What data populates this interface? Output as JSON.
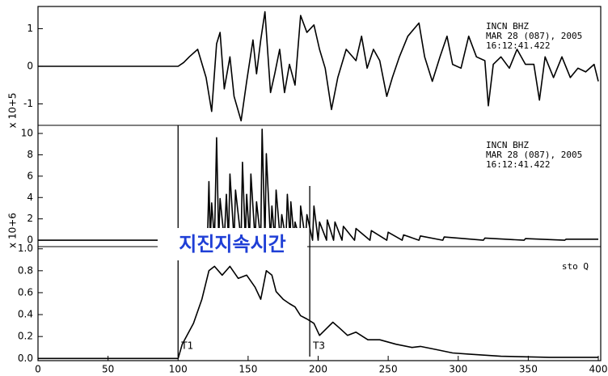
{
  "chart_data": [
    {
      "type": "line",
      "axis_label": "x 10+5",
      "color": "#000000",
      "annotations": [
        "INCN  BHZ",
        "MAR 28 (087), 2005",
        "16:12:41.422"
      ],
      "xlim": [
        0,
        400
      ],
      "ylim": [
        -1.57,
        1.59
      ],
      "yticks": [
        -1,
        0,
        1
      ],
      "x": [
        0,
        100,
        104,
        108,
        114,
        120,
        124,
        127.5,
        130,
        133,
        137,
        140,
        145,
        149,
        153.5,
        156,
        159,
        162,
        166,
        169,
        172.5,
        176,
        179.5,
        183.5,
        187.5,
        192,
        197,
        201,
        205,
        209.5,
        214,
        220,
        227,
        231,
        235,
        239.5,
        244,
        249,
        253,
        258,
        264,
        272,
        276,
        281.5,
        287,
        292,
        296,
        302,
        307.5,
        313,
        319,
        321.5,
        325,
        330.5,
        336.5,
        342,
        348,
        354,
        358,
        362,
        368,
        374,
        380,
        385.5,
        391,
        397,
        400
      ],
      "values": [
        0,
        0,
        0.1,
        0.25,
        0.45,
        -0.3,
        -1.2,
        0.6,
        0.9,
        -0.6,
        0.25,
        -0.8,
        -1.45,
        -0.4,
        0.7,
        -0.2,
        0.7,
        1.45,
        -0.7,
        -0.2,
        0.45,
        -0.7,
        0.05,
        -0.5,
        1.35,
        0.9,
        1.1,
        0.45,
        -0.05,
        -1.15,
        -0.3,
        0.45,
        0.15,
        0.8,
        -0.05,
        0.45,
        0.15,
        -0.8,
        -0.3,
        0.25,
        0.8,
        1.15,
        0.25,
        -0.4,
        0.25,
        0.8,
        0.05,
        -0.05,
        0.8,
        0.25,
        0.15,
        -1.05,
        0.05,
        0.25,
        -0.05,
        0.45,
        0.05,
        0.05,
        -0.9,
        0.25,
        -0.3,
        0.25,
        -0.3,
        -0.05,
        -0.15,
        0.05,
        -0.4
      ]
    },
    {
      "type": "line",
      "axis_label": "x 10+6",
      "color": "#000000",
      "annotations": [
        "INCN  BHZ",
        "MAR 28 (087), 2005",
        "16:12:41.422"
      ],
      "xlim": [
        0,
        400
      ],
      "ylim": [
        -0.6,
        10.76
      ],
      "yticks": [
        0,
        2,
        4,
        6,
        8,
        10
      ],
      "x": [
        0,
        100,
        121,
        122,
        123,
        124,
        126,
        127.5,
        129,
        130,
        133,
        134.5,
        136,
        137,
        140,
        141,
        145,
        146,
        148,
        149,
        151,
        152,
        155,
        156,
        159,
        160,
        162,
        163,
        166,
        167,
        169,
        170,
        173,
        174,
        177,
        178,
        180,
        180.5,
        183,
        183.5,
        187,
        187.5,
        191,
        192,
        196,
        197,
        200,
        201,
        206,
        206.5,
        211,
        212,
        217,
        218,
        226,
        227,
        237,
        238,
        249,
        250,
        260,
        261,
        272,
        273,
        289,
        290,
        318,
        319,
        347,
        348,
        376,
        377,
        400
      ],
      "values": [
        0,
        0,
        0,
        5.5,
        0,
        3.5,
        0,
        9.6,
        0,
        3.9,
        0,
        4.3,
        0,
        6.2,
        0,
        4.7,
        0,
        7.3,
        0,
        4.3,
        0,
        6.2,
        0,
        3.6,
        0,
        10.4,
        0,
        8.1,
        0,
        3.2,
        0,
        4.7,
        0,
        2.4,
        0,
        4.3,
        0,
        3.6,
        0,
        1.7,
        0,
        3.2,
        0,
        2.4,
        0,
        3.2,
        0,
        1.7,
        0,
        1.9,
        0,
        1.7,
        0,
        1.3,
        0,
        1.1,
        0,
        0.9,
        0,
        0.75,
        0,
        0.5,
        0,
        0.4,
        0,
        0.3,
        0,
        0.2,
        0,
        0.15,
        0,
        0.1,
        0.1
      ]
    },
    {
      "type": "line",
      "color": "#000000",
      "annotations": [
        "sto   Q"
      ],
      "markers": [
        {
          "label": "T1",
          "x": 100
        },
        {
          "label": "T3",
          "x": 194
        }
      ],
      "xlim": [
        0,
        400
      ],
      "xticks": [
        0,
        50,
        100,
        150,
        200,
        250,
        300,
        350,
        400
      ],
      "ylim": [
        -0.02,
        1.02
      ],
      "yticks": [
        {
          "value": 0,
          "label": "0.0"
        },
        0.2,
        0.4,
        0.6,
        0.8,
        {
          "value": 1,
          "label": "1.0"
        }
      ],
      "x": [
        0,
        100,
        103,
        111,
        117,
        122,
        126,
        131.5,
        137,
        143,
        149,
        155,
        159,
        163,
        167,
        170,
        175,
        179.5,
        183.5,
        187.5,
        192,
        197,
        201,
        206.5,
        210.5,
        215,
        221,
        227,
        235.5,
        244,
        255.5,
        267,
        273,
        284.5,
        296,
        307.5,
        330.5,
        365,
        400
      ],
      "values": [
        0,
        0,
        0.13,
        0.32,
        0.54,
        0.8,
        0.84,
        0.76,
        0.84,
        0.73,
        0.76,
        0.65,
        0.54,
        0.8,
        0.76,
        0.61,
        0.54,
        0.5,
        0.47,
        0.39,
        0.36,
        0.32,
        0.21,
        0.28,
        0.33,
        0.28,
        0.21,
        0.24,
        0.17,
        0.17,
        0.13,
        0.1,
        0.11,
        0.08,
        0.05,
        0.04,
        0.02,
        0.01,
        0.01
      ]
    }
  ],
  "overlay": {
    "text": "지진지속시간"
  }
}
